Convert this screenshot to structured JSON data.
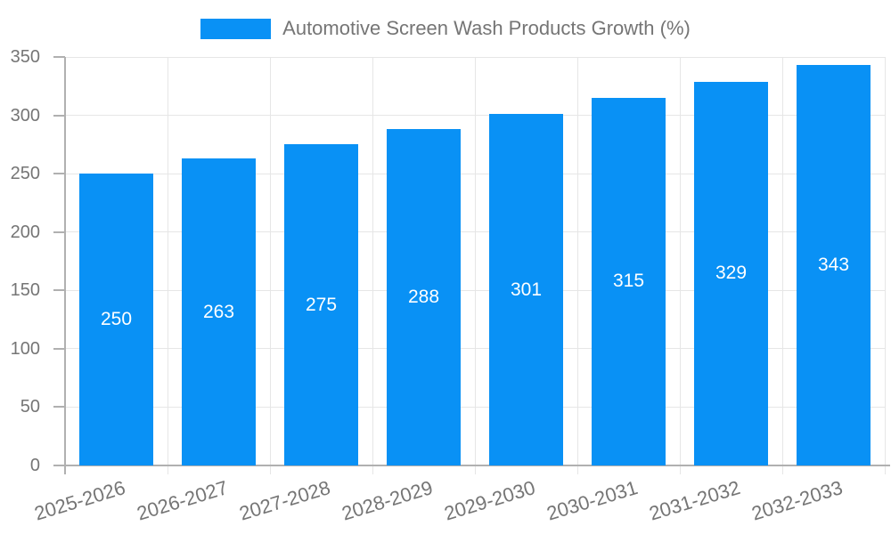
{
  "legend": {
    "label": "Automotive Screen Wash Products Growth (%)"
  },
  "colors": {
    "bar": "#0991f5",
    "grid": "#e6e6e6",
    "axis": "#b0b0b0",
    "text": "#757575",
    "bar_label": "#ffffff",
    "background": "#ffffff"
  },
  "chart_data": {
    "type": "bar",
    "title": "Automotive Screen Wash Products Growth (%)",
    "categories": [
      "2025-2026",
      "2026-2027",
      "2027-2028",
      "2028-2029",
      "2029-2030",
      "2030-2031",
      "2031-2032",
      "2032-2033"
    ],
    "values": [
      250,
      263,
      275,
      288,
      301,
      315,
      329,
      343
    ],
    "xlabel": "",
    "ylabel": "",
    "ylim": [
      0,
      350
    ],
    "yticks": [
      0,
      50,
      100,
      150,
      200,
      250,
      300,
      350
    ],
    "grid": true,
    "legend_position": "top",
    "bar_value_labels": "inside-center",
    "x_label_rotation_deg": -17
  }
}
